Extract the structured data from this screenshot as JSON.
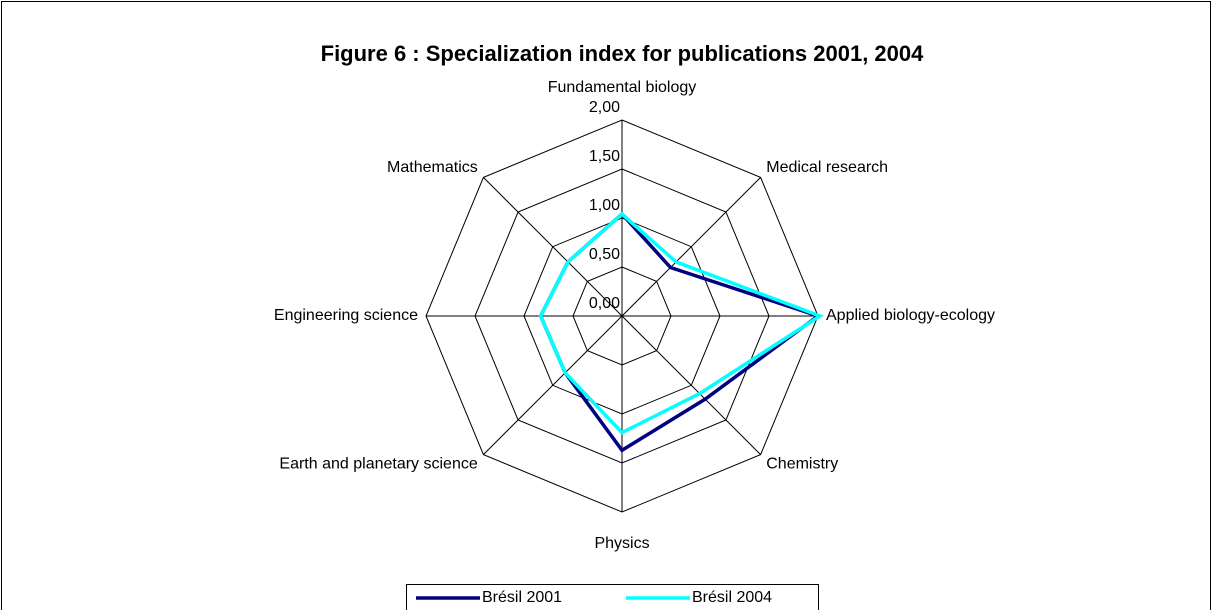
{
  "chart_data": {
    "type": "radar",
    "title": "Figure 6 : Specialization index for publications 2001, 2004",
    "categories": [
      "Fundamental biology",
      "Medical research",
      "Applied biology-ecology",
      "Chemistry",
      "Physics",
      "Earth and planetary science",
      "Engineering science",
      "Mathematics"
    ],
    "series": [
      {
        "name": "Brésil 2001",
        "color": "#000080",
        "values": [
          1.04,
          0.7,
          2.0,
          1.2,
          1.37,
          0.82,
          0.83,
          0.78
        ]
      },
      {
        "name": "Brésil 2004",
        "color": "#00ffff",
        "values": [
          1.04,
          0.78,
          2.02,
          1.12,
          1.19,
          0.82,
          0.83,
          0.78
        ]
      }
    ],
    "ylim": [
      0,
      2
    ],
    "yticks": [
      {
        "value": 0,
        "label": "0,00"
      },
      {
        "value": 0.5,
        "label": "0,50"
      },
      {
        "value": 1,
        "label": "1,00"
      },
      {
        "value": 1.5,
        "label": "1,50"
      },
      {
        "value": 2,
        "label": "2,00"
      }
    ],
    "grid": true,
    "legend": "bottom"
  }
}
